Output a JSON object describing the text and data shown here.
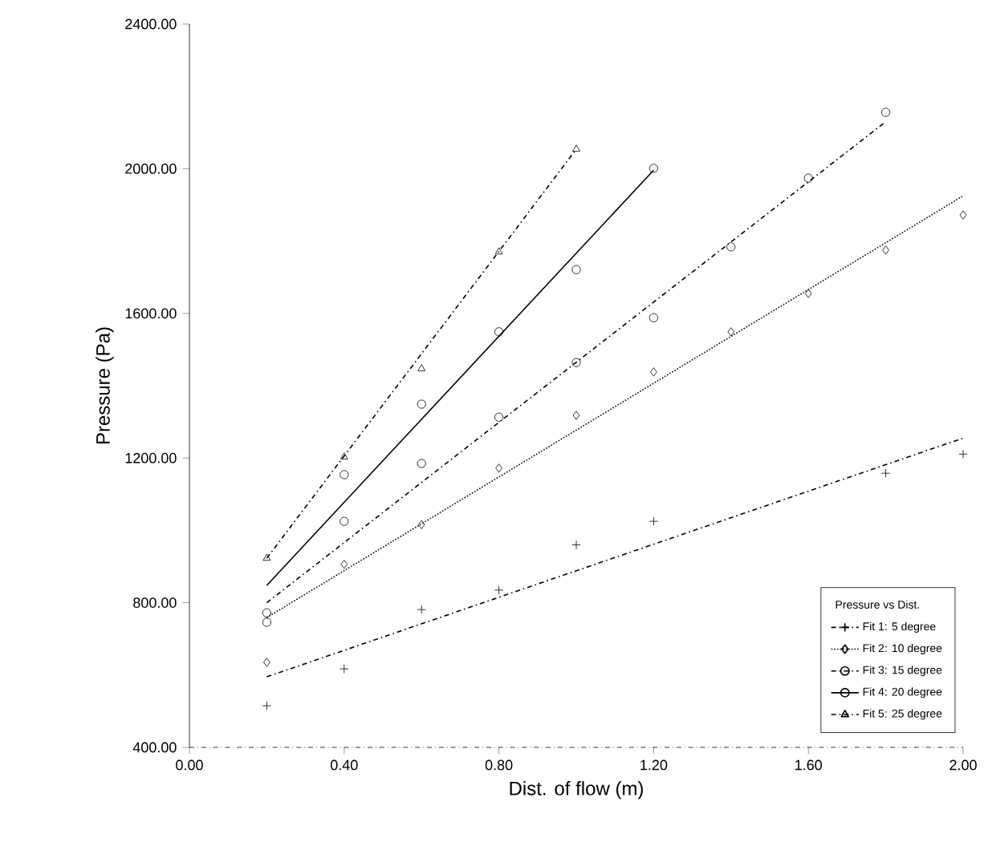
{
  "chart_data": {
    "type": "scatter",
    "xlabel": "Dist. of flow (m)",
    "ylabel": "Pressure (Pa)",
    "legend_title": "Pressure vs Dist.",
    "legend": "bottom right",
    "grid": false,
    "xlim": [
      0,
      2
    ],
    "ylim": [
      400,
      2400
    ],
    "xticks": [
      {
        "value": 0,
        "label": "0.00"
      },
      {
        "value": 0.4,
        "label": "0.40"
      },
      {
        "value": 0.8,
        "label": "0.80"
      },
      {
        "value": 1.2,
        "label": "1.20"
      },
      {
        "value": 1.6,
        "label": "1.60"
      },
      {
        "value": 2,
        "label": "2.00"
      }
    ],
    "yticks": [
      {
        "value": 400,
        "label": "400.00"
      },
      {
        "value": 800,
        "label": "800.00"
      },
      {
        "value": 1200,
        "label": "1200.00"
      },
      {
        "value": 1600,
        "label": "1600.00"
      },
      {
        "value": 2000,
        "label": "2000.00"
      },
      {
        "value": 2400,
        "label": "2400.00"
      }
    ],
    "series": [
      {
        "type": "scatter",
        "marker": "cross",
        "color": "#000000",
        "x": [
          0.2,
          0.4,
          0.6,
          0.8,
          1.0,
          1.2,
          1.8,
          2.0
        ],
        "values": [
          515,
          617,
          781,
          835,
          960,
          1025,
          1158,
          1211
        ]
      },
      {
        "type": "line",
        "name": "Fit 1: 5 degree",
        "line_style": "dashed",
        "color": "#000000",
        "x": [
          0.2,
          2.0
        ],
        "values": [
          595,
          1255
        ]
      },
      {
        "type": "scatter",
        "marker": "diamond",
        "color": "#000000",
        "x": [
          0.2,
          0.4,
          0.6,
          0.8,
          1.0,
          1.2,
          1.4,
          1.6,
          1.8,
          2.0
        ],
        "values": [
          635,
          906,
          1016,
          1172,
          1318,
          1438,
          1549,
          1655,
          1775,
          1872
        ]
      },
      {
        "type": "line",
        "name": "Fit 2: 10 degree",
        "line_style": "dotted",
        "color": "#000000",
        "x": [
          0.2,
          2.0
        ],
        "values": [
          759,
          1925
        ]
      },
      {
        "type": "scatter",
        "marker": "circle",
        "color": "#000000",
        "x": [
          0.2,
          0.4,
          0.6,
          0.8,
          1.0,
          1.2,
          1.4,
          1.6,
          1.8
        ],
        "values": [
          746,
          1025,
          1185,
          1313,
          1464,
          1588,
          1784,
          1974,
          2156
        ]
      },
      {
        "type": "line",
        "name": "Fit 3: 15 degree",
        "line_style": "dashed",
        "color": "#000000",
        "x": [
          0.2,
          1.8
        ],
        "values": [
          800,
          2130
        ]
      },
      {
        "type": "scatter",
        "marker": "circle",
        "color": "#000000",
        "x": [
          0.2,
          0.4,
          0.6,
          0.8,
          1.0,
          1.2
        ],
        "values": [
          772,
          1154,
          1349,
          1549,
          1721,
          2001
        ]
      },
      {
        "type": "line",
        "name": "Fit 4: 20 degree",
        "line_style": "solid",
        "color": "#000000",
        "x": [
          0.2,
          1.2
        ],
        "values": [
          848,
          1996
        ]
      },
      {
        "type": "scatter",
        "marker": "triangle",
        "color": "#000000",
        "x": [
          0.2,
          0.4,
          0.6,
          0.8,
          1.0
        ],
        "values": [
          923,
          1203,
          1447,
          1770,
          2054
        ]
      },
      {
        "type": "line",
        "name": "Fit 5: 25 degree",
        "line_style": "dashed",
        "color": "#000000",
        "x": [
          0.2,
          1.0
        ],
        "values": [
          923,
          2054
        ]
      }
    ]
  }
}
